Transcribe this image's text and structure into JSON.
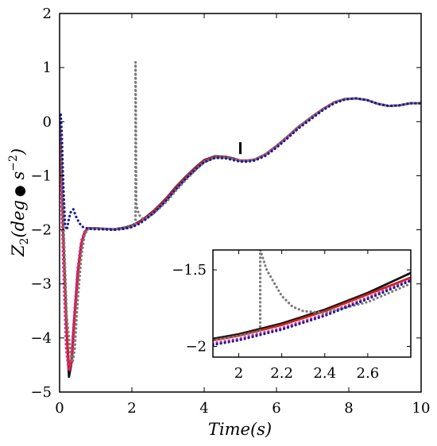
{
  "chart_data": [
    {
      "type": "line",
      "xlim": [
        0,
        10
      ],
      "ylim": [
        -5,
        2
      ],
      "x_ticks": [
        0,
        2,
        4,
        6,
        8,
        10
      ],
      "x_tick_labels": [
        "0",
        "2",
        "4",
        "6",
        "8",
        "10"
      ],
      "y_ticks": [
        2,
        1,
        0,
        -1,
        -2,
        -3,
        -4,
        -5
      ],
      "y_tick_labels": [
        "2",
        "1",
        "0",
        "−1",
        "−2",
        "−3",
        "−4",
        "−5"
      ],
      "xlabel": "Time(s)",
      "ylabel_parts": {
        "z": "Z",
        "sub": "2",
        "open": "(deg",
        "bullet": "●",
        "s": " s",
        "exp": "−2",
        "close": ")"
      },
      "grid": false,
      "legend": "none",
      "series": [
        {
          "color": "#111111",
          "dash": "solid",
          "x": [
            0,
            0.03,
            0.1,
            0.2,
            0.26,
            0.32,
            0.4,
            0.5,
            0.6,
            0.7,
            0.8,
            1.0,
            1.2,
            1.5,
            1.8,
            2.0,
            2.2,
            2.4,
            2.6,
            2.8,
            3.0,
            3.2,
            3.5,
            3.8,
            4.0,
            4.3,
            4.6,
            4.8,
            5.0,
            5.2,
            5.4,
            5.7,
            6.0,
            6.3,
            6.6,
            7.0,
            7.3,
            7.6,
            7.9,
            8.2,
            8.5,
            8.8,
            9.1,
            9.4,
            9.7,
            10.0
          ],
          "y": [
            0.0,
            -0.4,
            -2.0,
            -3.9,
            -4.72,
            -4.5,
            -3.7,
            -2.8,
            -2.25,
            -2.03,
            -1.97,
            -1.97,
            -1.98,
            -1.99,
            -1.96,
            -1.92,
            -1.85,
            -1.76,
            -1.65,
            -1.52,
            -1.38,
            -1.22,
            -1.01,
            -0.82,
            -0.71,
            -0.64,
            -0.65,
            -0.68,
            -0.72,
            -0.72,
            -0.7,
            -0.6,
            -0.45,
            -0.28,
            -0.1,
            0.1,
            0.24,
            0.36,
            0.42,
            0.43,
            0.4,
            0.33,
            0.29,
            0.3,
            0.34,
            0.34
          ]
        },
        {
          "color": "#c0291f",
          "dash": "solid",
          "x": [
            0,
            0.03,
            0.1,
            0.2,
            0.27,
            0.34,
            0.42,
            0.52,
            0.62,
            0.72,
            0.82,
            1.0,
            1.2,
            1.5,
            1.8,
            2.0,
            2.2,
            2.4,
            2.6,
            2.8,
            3.0,
            3.2,
            3.5,
            3.8,
            4.0,
            4.3,
            4.6,
            4.8,
            5.0,
            5.2,
            5.4,
            5.7,
            6.0,
            6.3,
            6.6,
            7.0,
            7.3,
            7.6,
            7.9,
            8.2,
            8.5,
            8.8,
            9.1,
            9.4,
            9.7,
            10.0
          ],
          "y": [
            -0.1,
            -0.5,
            -2.1,
            -3.95,
            -4.6,
            -4.45,
            -3.6,
            -2.75,
            -2.22,
            -2.02,
            -1.97,
            -1.97,
            -1.98,
            -1.99,
            -1.97,
            -1.93,
            -1.86,
            -1.77,
            -1.66,
            -1.53,
            -1.39,
            -1.23,
            -1.02,
            -0.83,
            -0.72,
            -0.65,
            -0.66,
            -0.69,
            -0.72,
            -0.72,
            -0.7,
            -0.6,
            -0.45,
            -0.28,
            -0.1,
            0.1,
            0.24,
            0.36,
            0.42,
            0.43,
            0.4,
            0.33,
            0.29,
            0.3,
            0.34,
            0.34
          ]
        },
        {
          "color": "#e91e8c",
          "dash": "dotted",
          "x": [
            0,
            0.03,
            0.1,
            0.18,
            0.25,
            0.32,
            0.4,
            0.5,
            0.6,
            0.7,
            0.8,
            1.0,
            1.2,
            1.5,
            1.8,
            2.0,
            2.2,
            2.4,
            2.6,
            2.8,
            3.0,
            3.2,
            3.5,
            3.8,
            4.0,
            4.3,
            4.6,
            4.8,
            5.0,
            5.2,
            5.4,
            5.7,
            6.0,
            6.3,
            6.6,
            7.0,
            7.3,
            7.6,
            7.9,
            8.2,
            8.5,
            8.8,
            9.1,
            9.4,
            9.7,
            10.0
          ],
          "y": [
            -0.3,
            -0.9,
            -2.6,
            -4.2,
            -4.6,
            -4.4,
            -3.6,
            -2.7,
            -2.2,
            -2.02,
            -1.98,
            -1.98,
            -1.99,
            -2.0,
            -1.98,
            -1.95,
            -1.88,
            -1.79,
            -1.68,
            -1.55,
            -1.41,
            -1.25,
            -1.04,
            -0.85,
            -0.74,
            -0.66,
            -0.67,
            -0.7,
            -0.73,
            -0.73,
            -0.71,
            -0.62,
            -0.47,
            -0.3,
            -0.12,
            0.08,
            0.23,
            0.35,
            0.41,
            0.43,
            0.4,
            0.33,
            0.29,
            0.3,
            0.34,
            0.34
          ]
        },
        {
          "color": "#7a7a7a",
          "dash": "dotted",
          "x": [
            0,
            0.03,
            0.1,
            0.2,
            0.3,
            0.36,
            0.42,
            0.5,
            0.6,
            0.7,
            0.8,
            1.0,
            1.2,
            1.5,
            1.8,
            2.0,
            2.09,
            2.1,
            2.1,
            2.12,
            2.15,
            2.2,
            2.25,
            2.3,
            2.4,
            2.6,
            2.8,
            3.0,
            3.2,
            3.5,
            3.8,
            4.0,
            4.3,
            4.6,
            4.8,
            5.0,
            5.2,
            5.4,
            5.7,
            6.0,
            6.3,
            6.6,
            7.0,
            7.3,
            7.6,
            7.9,
            8.2,
            8.5,
            8.8,
            9.1,
            9.4,
            9.7,
            10.0
          ],
          "y": [
            0.0,
            -0.3,
            -1.7,
            -3.6,
            -4.3,
            -4.45,
            -4.2,
            -3.3,
            -2.5,
            -2.08,
            -1.98,
            -1.97,
            -1.98,
            -1.99,
            -1.97,
            -1.93,
            -1.9,
            -1.9,
            1.1,
            -1.5,
            -1.62,
            -1.72,
            -1.77,
            -1.79,
            -1.78,
            -1.7,
            -1.58,
            -1.45,
            -1.29,
            -1.07,
            -0.87,
            -0.75,
            -0.66,
            -0.66,
            -0.69,
            -0.72,
            -0.72,
            -0.7,
            -0.6,
            -0.45,
            -0.28,
            -0.1,
            0.1,
            0.24,
            0.36,
            0.42,
            0.43,
            0.4,
            0.33,
            0.29,
            0.3,
            0.34,
            0.34
          ]
        },
        {
          "color": "#1a1a99",
          "dash": "dotted",
          "x": [
            0,
            0.03,
            0.06,
            0.1,
            0.15,
            0.2,
            0.25,
            0.3,
            0.38,
            0.45,
            0.55,
            0.65,
            0.8,
            1.0,
            1.2,
            1.5,
            1.8,
            2.0,
            2.2,
            2.4,
            2.6,
            2.8,
            3.0,
            3.2,
            3.5,
            3.8,
            4.0,
            4.3,
            4.6,
            4.8,
            5.0,
            5.2,
            5.4,
            5.7,
            6.0,
            6.3,
            6.6,
            7.0,
            7.3,
            7.6,
            7.9,
            8.2,
            8.5,
            8.8,
            9.1,
            9.4,
            9.7,
            10.0
          ],
          "y": [
            0.1,
            0.15,
            -0.2,
            -1.1,
            -1.9,
            -2.0,
            -1.82,
            -1.68,
            -1.62,
            -1.75,
            -1.88,
            -1.95,
            -1.98,
            -1.99,
            -1.99,
            -2.0,
            -1.98,
            -1.95,
            -1.89,
            -1.8,
            -1.69,
            -1.56,
            -1.42,
            -1.26,
            -1.05,
            -0.86,
            -0.75,
            -0.67,
            -0.68,
            -0.71,
            -0.74,
            -0.74,
            -0.72,
            -0.63,
            -0.48,
            -0.31,
            -0.13,
            0.07,
            0.22,
            0.34,
            0.41,
            0.43,
            0.4,
            0.33,
            0.29,
            0.3,
            0.34,
            0.34
          ]
        }
      ],
      "annotations": [
        {
          "type": "vertical-tick",
          "color": "#000000",
          "x": 5.0,
          "y_from": -0.38,
          "y_to": -0.6
        }
      ]
    },
    {
      "type": "line",
      "role": "inset-zoom",
      "xlim": [
        1.88,
        2.8
      ],
      "ylim": [
        -2.07,
        -1.37
      ],
      "x_ticks": [
        2.0,
        2.2,
        2.4,
        2.6
      ],
      "x_tick_labels": [
        "2",
        "2.2",
        "2.4",
        "2.6"
      ],
      "y_ticks": [
        -1.5,
        -2.0
      ],
      "y_tick_labels": [
        "−1.5",
        "−2"
      ],
      "grid": false,
      "legend": "none",
      "series": [
        {
          "color": "#111111",
          "dash": "solid",
          "x": [
            1.88,
            2.0,
            2.2,
            2.4,
            2.6,
            2.8
          ],
          "y": [
            -1.95,
            -1.92,
            -1.85,
            -1.76,
            -1.65,
            -1.52
          ]
        },
        {
          "color": "#c0291f",
          "dash": "solid",
          "x": [
            1.88,
            2.0,
            2.2,
            2.4,
            2.6,
            2.8
          ],
          "y": [
            -1.96,
            -1.93,
            -1.86,
            -1.77,
            -1.66,
            -1.55
          ]
        },
        {
          "color": "#e91e8c",
          "dash": "dotted",
          "x": [
            1.88,
            2.0,
            2.2,
            2.4,
            2.6,
            2.8
          ],
          "y": [
            -1.98,
            -1.95,
            -1.88,
            -1.79,
            -1.68,
            -1.56
          ]
        },
        {
          "color": "#7a7a7a",
          "dash": "dotted",
          "x": [
            1.88,
            2.0,
            2.1,
            2.1,
            2.13,
            2.2,
            2.25,
            2.3,
            2.4,
            2.6,
            2.8
          ],
          "y": [
            -1.96,
            -1.93,
            -1.9,
            -1.37,
            -1.5,
            -1.67,
            -1.74,
            -1.77,
            -1.78,
            -1.71,
            -1.59
          ]
        },
        {
          "color": "#1a1a99",
          "dash": "dotted",
          "x": [
            1.88,
            2.0,
            2.2,
            2.4,
            2.6,
            2.8
          ],
          "y": [
            -1.99,
            -1.96,
            -1.89,
            -1.8,
            -1.69,
            -1.57
          ]
        }
      ]
    }
  ]
}
